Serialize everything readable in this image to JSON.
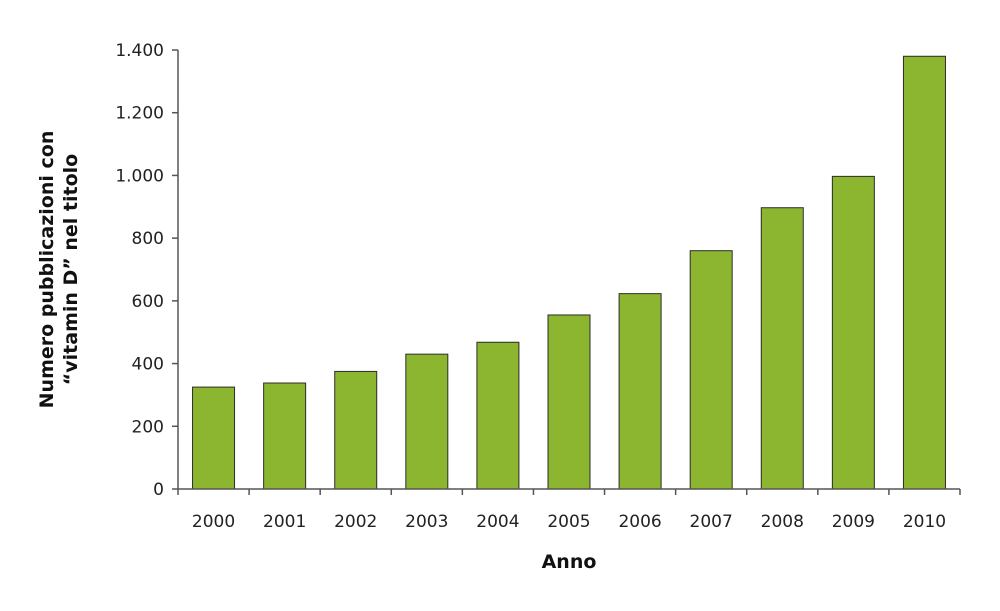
{
  "chart_data": {
    "type": "bar",
    "categories": [
      "2000",
      "2001",
      "2002",
      "2003",
      "2004",
      "2005",
      "2006",
      "2007",
      "2008",
      "2009",
      "2010"
    ],
    "values": [
      325,
      338,
      375,
      430,
      468,
      555,
      623,
      760,
      897,
      997,
      1380
    ],
    "xlabel": "Anno",
    "ylabel_lines": [
      "Numero pubblicazioni con",
      "“vitamin D” nel titolo"
    ],
    "ylim": [
      0,
      1400
    ],
    "yticks": [
      0,
      200,
      400,
      600,
      800,
      1000,
      1200,
      1400
    ],
    "ytick_labels": [
      "0",
      "200",
      "400",
      "600",
      "800",
      "1.000",
      "1.200",
      "1.400"
    ],
    "grid": false,
    "bar_color": "#8db630",
    "bar_edge_color": "#2b2b2b"
  }
}
